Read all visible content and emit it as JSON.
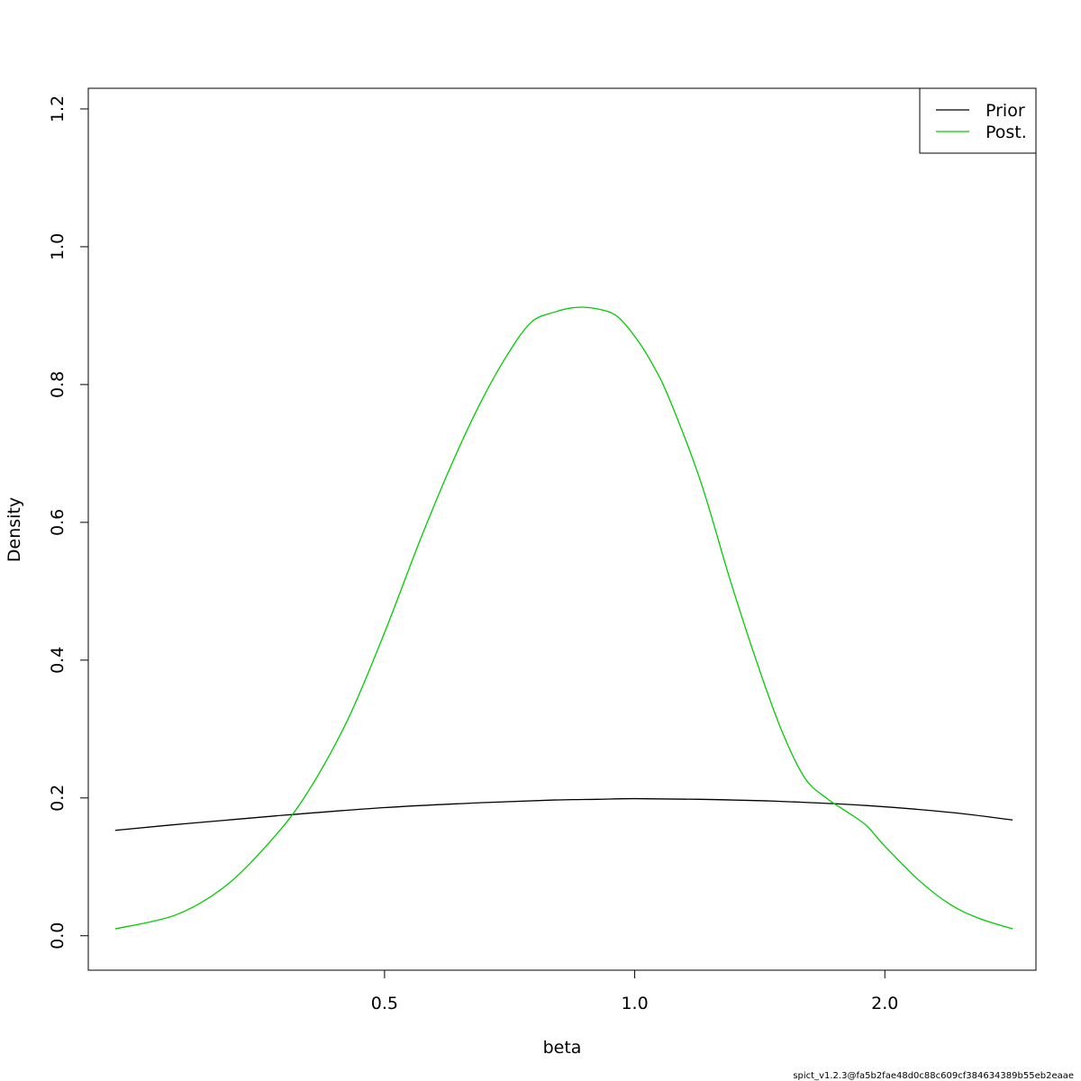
{
  "chart_data": {
    "type": "line",
    "title": "",
    "xlabel": "beta",
    "ylabel": "Density",
    "x_scale": "log",
    "xlim": [
      0.22,
      3.04
    ],
    "ylim": [
      -0.05,
      1.23
    ],
    "x_ticks": [
      {
        "value": 0.5,
        "label": "0.5"
      },
      {
        "value": 1.0,
        "label": "1.0"
      },
      {
        "value": 2.0,
        "label": "2.0"
      }
    ],
    "y_ticks": [
      {
        "value": 0.0,
        "label": "0.0"
      },
      {
        "value": 0.2,
        "label": "0.2"
      },
      {
        "value": 0.4,
        "label": "0.4"
      },
      {
        "value": 0.6,
        "label": "0.6"
      },
      {
        "value": 0.8,
        "label": "0.8"
      },
      {
        "value": 1.0,
        "label": "1.0"
      },
      {
        "value": 1.2,
        "label": "1.2"
      }
    ],
    "grid": false,
    "legend_position": "top-right",
    "series": [
      {
        "name": "Prior",
        "color": "#000000",
        "x": [
          0.237,
          0.29,
          0.37,
          0.5,
          0.65,
          0.8,
          0.9,
          1.0,
          1.2,
          1.5,
          1.9,
          2.4,
          2.85
        ],
        "y": [
          0.153,
          0.163,
          0.174,
          0.186,
          0.193,
          0.197,
          0.198,
          0.199,
          0.198,
          0.195,
          0.189,
          0.179,
          0.168
        ]
      },
      {
        "name": "Post.",
        "color": "#00cc00",
        "x": [
          0.237,
          0.28,
          0.32,
          0.36,
          0.4,
          0.45,
          0.5,
          0.55,
          0.6,
          0.65,
          0.7,
          0.75,
          0.8,
          0.85,
          0.9,
          0.95,
          1.0,
          1.05,
          1.1,
          1.2,
          1.3,
          1.4,
          1.5,
          1.6,
          1.7,
          1.8,
          1.9,
          2.0,
          2.2,
          2.4,
          2.6,
          2.85
        ],
        "y": [
          0.01,
          0.03,
          0.07,
          0.13,
          0.2,
          0.31,
          0.44,
          0.57,
          0.68,
          0.77,
          0.84,
          0.89,
          0.905,
          0.912,
          0.91,
          0.9,
          0.87,
          0.83,
          0.78,
          0.66,
          0.52,
          0.4,
          0.3,
          0.23,
          0.2,
          0.18,
          0.16,
          0.13,
          0.08,
          0.045,
          0.025,
          0.01
        ]
      }
    ]
  },
  "footer": {
    "text": "spict_v1.2.3@fa5b2fae48d0c88c609cf384634389b55eb2eaae"
  }
}
